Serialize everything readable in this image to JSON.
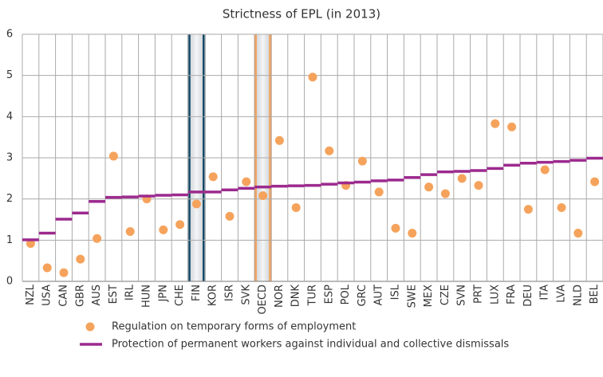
{
  "chart_data": {
    "type": "combo",
    "title": "Strictness of EPL (in 2013)",
    "categories": [
      "NZL",
      "USA",
      "CAN",
      "GBR",
      "AUS",
      "EST",
      "IRL",
      "HUN",
      "JPN",
      "CHE",
      "FIN",
      "KOR",
      "ISR",
      "SVK",
      "OECD",
      "NOR",
      "DNK",
      "TUR",
      "ESP",
      "POL",
      "GRC",
      "AUT",
      "ISL",
      "SWE",
      "MEX",
      "CZE",
      "SVN",
      "PRT",
      "LUX",
      "FRA",
      "DEU",
      "ITA",
      "LVA",
      "NLD",
      "BEL"
    ],
    "series": [
      {
        "name": "Regulation on temporary forms of employment",
        "kind": "dot",
        "color": "#f5a35c",
        "values": [
          0.92,
          0.33,
          0.21,
          0.54,
          1.04,
          3.04,
          1.21,
          2.0,
          1.25,
          1.38,
          1.88,
          2.54,
          1.58,
          2.42,
          2.08,
          3.42,
          1.79,
          4.96,
          3.17,
          2.33,
          2.92,
          2.17,
          1.29,
          1.17,
          2.29,
          2.13,
          2.5,
          2.33,
          3.83,
          3.75,
          1.75,
          2.71,
          1.79,
          1.17,
          2.42
        ]
      },
      {
        "name": "Protection of permanent workers against individual and collective dismissals",
        "kind": "step",
        "color": "#9c2a8e",
        "values": [
          1.01,
          1.17,
          1.51,
          1.66,
          1.94,
          2.04,
          2.05,
          2.07,
          2.09,
          2.1,
          2.17,
          2.17,
          2.22,
          2.26,
          2.29,
          2.31,
          2.32,
          2.33,
          2.36,
          2.39,
          2.41,
          2.44,
          2.46,
          2.52,
          2.59,
          2.66,
          2.67,
          2.69,
          2.74,
          2.82,
          2.87,
          2.89,
          2.91,
          2.94,
          2.99
        ]
      }
    ],
    "ylim": [
      0,
      6
    ],
    "yticks": [
      0,
      1,
      2,
      3,
      4,
      5,
      6
    ],
    "grid": true,
    "legend": "bottom",
    "highlights": [
      {
        "category": "FIN",
        "color": "#0f4766"
      },
      {
        "category": "OECD",
        "color": "#f5a35c"
      }
    ]
  }
}
